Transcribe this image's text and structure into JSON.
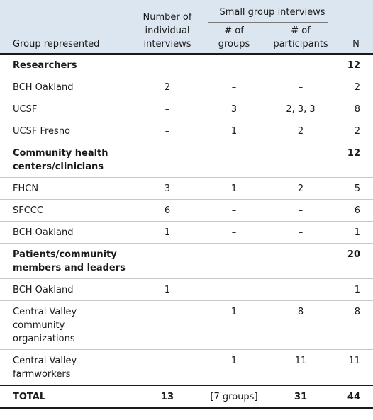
{
  "header": {
    "group_represented": "Group represented",
    "individual": "Number of individual interviews",
    "small_group": "Small group interviews",
    "num_groups": "# of groups",
    "num_participants": "# of participants",
    "n": "N"
  },
  "rows": [
    {
      "type": "group",
      "label": "Researchers",
      "ind": "",
      "groups": "",
      "participants": "",
      "n": "12"
    },
    {
      "type": "data",
      "label": "BCH Oakland",
      "ind": "2",
      "groups": "–",
      "participants": "–",
      "n": "2"
    },
    {
      "type": "data",
      "label": "UCSF",
      "ind": "–",
      "groups": "3",
      "participants": "2, 3, 3",
      "n": "8"
    },
    {
      "type": "data",
      "label": "UCSF Fresno",
      "ind": "–",
      "groups": "1",
      "participants": "2",
      "n": "2"
    },
    {
      "type": "group",
      "label": "Community health centers/clinicians",
      "ind": "",
      "groups": "",
      "participants": "",
      "n": "12"
    },
    {
      "type": "data",
      "label": "FHCN",
      "ind": "3",
      "groups": "1",
      "participants": "2",
      "n": "5"
    },
    {
      "type": "data",
      "label": "SFCCC",
      "ind": "6",
      "groups": "–",
      "participants": "–",
      "n": "6"
    },
    {
      "type": "data",
      "label": "BCH Oakland",
      "ind": "1",
      "groups": "–",
      "participants": "–",
      "n": "1"
    },
    {
      "type": "group",
      "label": "Patients/community members and leaders",
      "ind": "",
      "groups": "",
      "participants": "",
      "n": "20"
    },
    {
      "type": "data",
      "label": "BCH Oakland",
      "ind": "1",
      "groups": "–",
      "participants": "–",
      "n": "1"
    },
    {
      "type": "data",
      "label": "Central Valley community organizations",
      "ind": "–",
      "groups": "1",
      "participants": "8",
      "n": "8"
    },
    {
      "type": "data",
      "label": "Central Valley farmworkers",
      "ind": "–",
      "groups": "1",
      "participants": "11",
      "n": "11"
    }
  ],
  "total": {
    "label": "TOTAL",
    "ind": "13",
    "groups": "[7 groups]",
    "participants": "31",
    "n": "44"
  }
}
